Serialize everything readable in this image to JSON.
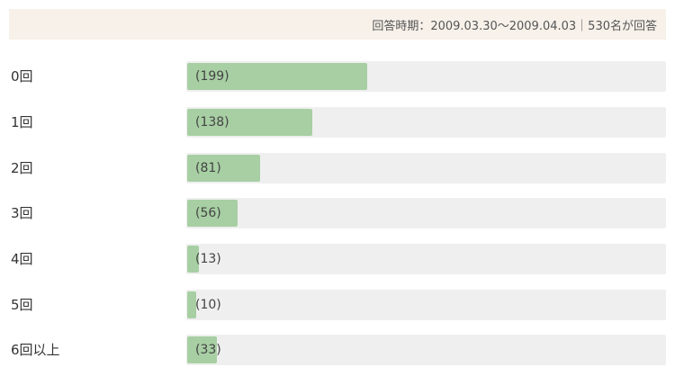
{
  "header": {
    "period_text": "回答時期：2009.03.30～2009.04.03｜530名が回答"
  },
  "colors": {
    "bar_fill": "#a7cfa3",
    "track": "#efefef",
    "header_bg": "#f7f1ea"
  },
  "chart_data": {
    "type": "bar",
    "orientation": "horizontal",
    "categories": [
      "0回",
      "1回",
      "2回",
      "3回",
      "4回",
      "5回",
      "6回以上"
    ],
    "values": [
      199,
      138,
      81,
      56,
      13,
      10,
      33
    ],
    "value_labels": [
      "(199)",
      "(138)",
      "(81)",
      "(56)",
      "(13)",
      "(10)",
      "(33)"
    ],
    "xlim": [
      0,
      530
    ]
  }
}
